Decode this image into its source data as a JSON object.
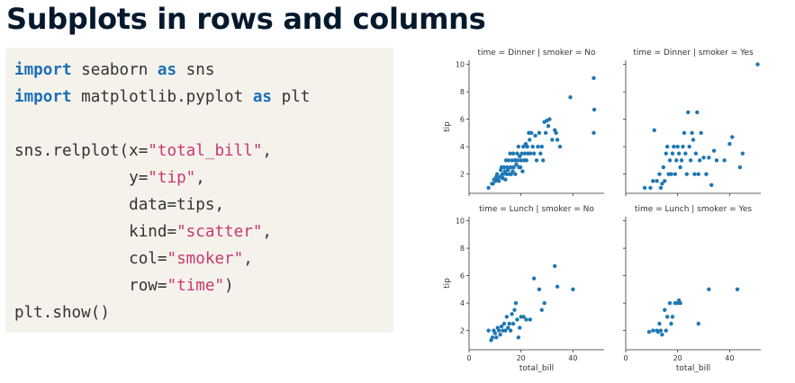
{
  "title": "Subplots in rows and columns",
  "code": {
    "lines": [
      [
        {
          "t": "import",
          "c": "kw"
        },
        {
          "t": " seaborn "
        },
        {
          "t": "as",
          "c": "kw"
        },
        {
          "t": " sns"
        }
      ],
      [
        {
          "t": "import",
          "c": "kw"
        },
        {
          "t": " matplotlib.pyplot "
        },
        {
          "t": "as",
          "c": "kw"
        },
        {
          "t": " plt"
        }
      ],
      [],
      [
        {
          "t": "sns.relplot(x="
        },
        {
          "t": "\"total_bill\"",
          "c": "str"
        },
        {
          "t": ","
        }
      ],
      [
        {
          "t": "            y="
        },
        {
          "t": "\"tip\"",
          "c": "str"
        },
        {
          "t": ","
        }
      ],
      [
        {
          "t": "            data=tips,"
        }
      ],
      [
        {
          "t": "            kind="
        },
        {
          "t": "\"scatter\"",
          "c": "str"
        },
        {
          "t": ","
        }
      ],
      [
        {
          "t": "            col="
        },
        {
          "t": "\"smoker\"",
          "c": "str"
        },
        {
          "t": ","
        }
      ],
      [
        {
          "t": "            row="
        },
        {
          "t": "\"time\"",
          "c": "str"
        },
        {
          "t": ")"
        }
      ],
      [
        {
          "t": "plt.show()"
        }
      ]
    ]
  },
  "colors": {
    "point": "#1f77b4",
    "axis": "#333333",
    "title": "#05192d",
    "keyword": "#1b6fb8",
    "string": "#c8396b",
    "code_bg": "#f5f2ec"
  },
  "chart_data": {
    "type": "scatter",
    "xlabel": "total_bill",
    "ylabel": "tip",
    "xlim": [
      0,
      52
    ],
    "ylim": [
      0.6,
      10.3
    ],
    "x_ticks": [
      0,
      20,
      40
    ],
    "y_ticks": [
      2,
      4,
      6,
      8,
      10
    ],
    "grid": false,
    "facets": [
      {
        "title": "time = Dinner | smoker = No",
        "points": [
          [
            7.5,
            1.0
          ],
          [
            8.8,
            1.3
          ],
          [
            9.2,
            1.3
          ],
          [
            9.6,
            1.6
          ],
          [
            10.2,
            1.5
          ],
          [
            10.5,
            1.8
          ],
          [
            10.8,
            2.0
          ],
          [
            11.0,
            1.6
          ],
          [
            11.5,
            1.5
          ],
          [
            12.0,
            1.8
          ],
          [
            12.2,
            2.3
          ],
          [
            12.5,
            2.5
          ],
          [
            12.8,
            2.0
          ],
          [
            13.0,
            1.7
          ],
          [
            13.2,
            2.0
          ],
          [
            13.5,
            2.5
          ],
          [
            13.8,
            2.2
          ],
          [
            14.0,
            1.6
          ],
          [
            14.2,
            3.0
          ],
          [
            14.5,
            2.0
          ],
          [
            14.7,
            2.5
          ],
          [
            15.0,
            2.3
          ],
          [
            15.2,
            3.0
          ],
          [
            15.5,
            2.0
          ],
          [
            15.8,
            3.5
          ],
          [
            16.0,
            2.5
          ],
          [
            16.2,
            2.0
          ],
          [
            16.5,
            3.0
          ],
          [
            16.8,
            2.2
          ],
          [
            17.0,
            3.5
          ],
          [
            17.2,
            2.5
          ],
          [
            17.5,
            3.0
          ],
          [
            17.8,
            2.0
          ],
          [
            18.0,
            3.0
          ],
          [
            18.2,
            2.7
          ],
          [
            18.5,
            3.5
          ],
          [
            18.8,
            3.0
          ],
          [
            19.0,
            4.0
          ],
          [
            19.2,
            2.5
          ],
          [
            19.5,
            3.3
          ],
          [
            19.8,
            2.5
          ],
          [
            20.0,
            3.0
          ],
          [
            20.3,
            3.5
          ],
          [
            20.6,
            2.2
          ],
          [
            20.9,
            4.0
          ],
          [
            21.2,
            3.0
          ],
          [
            21.5,
            3.5
          ],
          [
            21.8,
            4.2
          ],
          [
            22.1,
            3.0
          ],
          [
            22.4,
            4.0
          ],
          [
            22.7,
            3.5
          ],
          [
            23.0,
            5.0
          ],
          [
            23.3,
            4.5
          ],
          [
            23.6,
            3.5
          ],
          [
            24.0,
            5.0
          ],
          [
            24.5,
            4.0
          ],
          [
            25.0,
            3.5
          ],
          [
            25.5,
            4.8
          ],
          [
            26.0,
            3.0
          ],
          [
            26.5,
            4.0
          ],
          [
            27.0,
            5.0
          ],
          [
            27.5,
            3.5
          ],
          [
            28.0,
            4.0
          ],
          [
            28.5,
            3.0
          ],
          [
            29.0,
            5.8
          ],
          [
            29.5,
            5.0
          ],
          [
            30.0,
            5.9
          ],
          [
            30.5,
            5.5
          ],
          [
            31.0,
            6.0
          ],
          [
            32.0,
            4.5
          ],
          [
            33.0,
            5.2
          ],
          [
            33.5,
            5.0
          ],
          [
            34.0,
            4.5
          ],
          [
            35.0,
            4.0
          ],
          [
            39.0,
            7.6
          ],
          [
            48.0,
            9.0
          ],
          [
            48.2,
            6.7
          ],
          [
            48.0,
            5.0
          ]
        ]
      },
      {
        "title": "time = Dinner | smoker = Yes",
        "points": [
          [
            7.3,
            1.0
          ],
          [
            9.5,
            1.0
          ],
          [
            10.5,
            1.5
          ],
          [
            11.0,
            5.2
          ],
          [
            12.0,
            1.5
          ],
          [
            13.0,
            2.0
          ],
          [
            13.5,
            1.0
          ],
          [
            14.0,
            1.3
          ],
          [
            14.5,
            2.5
          ],
          [
            15.0,
            1.5
          ],
          [
            15.5,
            3.5
          ],
          [
            16.0,
            4.0
          ],
          [
            16.5,
            2.0
          ],
          [
            17.0,
            3.0
          ],
          [
            17.5,
            2.0
          ],
          [
            18.0,
            3.5
          ],
          [
            18.5,
            4.0
          ],
          [
            19.0,
            2.0
          ],
          [
            19.5,
            3.0
          ],
          [
            20.0,
            4.0
          ],
          [
            20.5,
            3.5
          ],
          [
            21.0,
            2.5
          ],
          [
            21.5,
            3.0
          ],
          [
            22.0,
            4.0
          ],
          [
            22.5,
            5.0
          ],
          [
            23.0,
            3.5
          ],
          [
            23.5,
            2.0
          ],
          [
            24.0,
            6.5
          ],
          [
            24.5,
            4.0
          ],
          [
            25.0,
            3.0
          ],
          [
            25.5,
            5.0
          ],
          [
            26.0,
            4.5
          ],
          [
            26.5,
            2.0
          ],
          [
            27.0,
            3.5
          ],
          [
            27.5,
            6.5
          ],
          [
            28.0,
            2.0
          ],
          [
            28.5,
            3.0
          ],
          [
            29.0,
            5.0
          ],
          [
            30.0,
            3.2
          ],
          [
            31.0,
            2.0
          ],
          [
            32.0,
            3.2
          ],
          [
            33.0,
            1.2
          ],
          [
            34.0,
            3.7
          ],
          [
            35.0,
            3.0
          ],
          [
            38.0,
            3.0
          ],
          [
            40.0,
            4.2
          ],
          [
            41.0,
            4.7
          ],
          [
            44.0,
            2.5
          ],
          [
            45.0,
            3.5
          ],
          [
            50.8,
            10.0
          ]
        ]
      },
      {
        "title": "time = Lunch | smoker = No",
        "points": [
          [
            7.5,
            2.0
          ],
          [
            8.5,
            1.3
          ],
          [
            9.0,
            1.5
          ],
          [
            9.5,
            2.0
          ],
          [
            10.0,
            1.8
          ],
          [
            10.5,
            1.5
          ],
          [
            11.0,
            2.2
          ],
          [
            11.5,
            2.0
          ],
          [
            12.0,
            1.7
          ],
          [
            12.5,
            2.3
          ],
          [
            13.0,
            2.0
          ],
          [
            13.5,
            2.5
          ],
          [
            14.0,
            2.0
          ],
          [
            14.5,
            3.0
          ],
          [
            15.0,
            2.2
          ],
          [
            15.5,
            2.5
          ],
          [
            16.0,
            2.0
          ],
          [
            16.5,
            3.2
          ],
          [
            17.0,
            2.5
          ],
          [
            17.5,
            3.5
          ],
          [
            18.0,
            4.0
          ],
          [
            18.5,
            2.8
          ],
          [
            19.0,
            1.5
          ],
          [
            19.5,
            2.2
          ],
          [
            20.0,
            3.0
          ],
          [
            21.0,
            3.0
          ],
          [
            22.0,
            2.8
          ],
          [
            23.5,
            2.8
          ],
          [
            25.0,
            5.8
          ],
          [
            27.0,
            5.0
          ],
          [
            28.0,
            3.5
          ],
          [
            29.0,
            4.0
          ],
          [
            33.0,
            6.7
          ],
          [
            34.0,
            5.2
          ],
          [
            40.0,
            5.0
          ]
        ]
      },
      {
        "title": "time = Lunch | smoker = Yes",
        "points": [
          [
            9.0,
            1.9
          ],
          [
            10.5,
            2.0
          ],
          [
            12.0,
            2.0
          ],
          [
            12.5,
            1.9
          ],
          [
            13.0,
            2.5
          ],
          [
            13.5,
            2.0
          ],
          [
            14.0,
            1.7
          ],
          [
            15.0,
            3.5
          ],
          [
            15.5,
            2.0
          ],
          [
            16.0,
            3.0
          ],
          [
            17.0,
            4.0
          ],
          [
            17.5,
            2.5
          ],
          [
            18.0,
            3.0
          ],
          [
            19.0,
            4.0
          ],
          [
            20.0,
            4.0
          ],
          [
            20.5,
            4.2
          ],
          [
            21.0,
            4.0
          ],
          [
            28.0,
            2.5
          ],
          [
            32.0,
            5.0
          ],
          [
            43.0,
            5.0
          ]
        ]
      }
    ]
  }
}
